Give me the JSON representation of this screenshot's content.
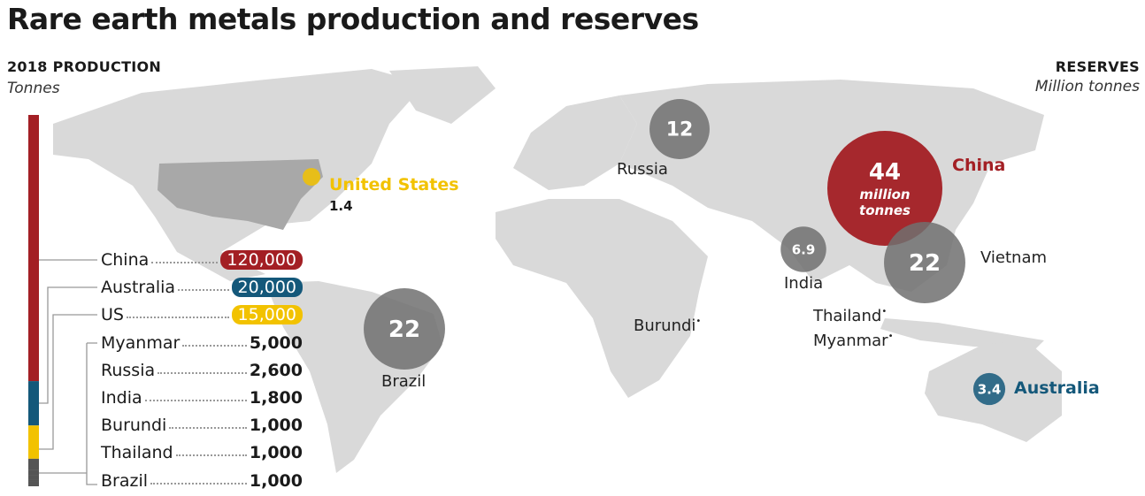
{
  "title": "Rare earth metals production and reserves",
  "production_header": {
    "title": "2018 Production",
    "unit": "Tonnes"
  },
  "reserves_header": {
    "title": "Reserves",
    "unit": "Million tonnes"
  },
  "colors": {
    "china": "#a31f24",
    "australia": "#14587a",
    "us": "#f2c200",
    "other": "#555555",
    "bubble_gray": "#707070",
    "land": "#d6d6d6",
    "land_dark": "#a8a8a8"
  },
  "chart_data": [
    {
      "type": "bar",
      "stacked": true,
      "title": "2018 Production",
      "ylabel": "Tonnes",
      "categories": [
        "China",
        "Australia",
        "US",
        "Myanmar",
        "Russia",
        "India",
        "Burundi",
        "Thailand",
        "Brazil"
      ],
      "values": [
        120000,
        20000,
        15000,
        5000,
        2600,
        1800,
        1000,
        1000,
        1000
      ],
      "value_labels": [
        "120,000",
        "20,000",
        "15,000",
        "5,000",
        "2,600",
        "1,800",
        "1,000",
        "1,000",
        "1,000"
      ]
    },
    {
      "type": "scatter",
      "title": "Reserves",
      "ylabel": "Million tonnes",
      "points": [
        {
          "country": "China",
          "value": 44,
          "label": "44",
          "note": [
            "million",
            "tonnes"
          ],
          "color": "#a31f24"
        },
        {
          "country": "Vietnam",
          "value": 22,
          "label": "22",
          "color": "#707070"
        },
        {
          "country": "Brazil",
          "value": 22,
          "label": "22",
          "color": "#707070"
        },
        {
          "country": "Russia",
          "value": 12,
          "label": "12",
          "color": "#707070"
        },
        {
          "country": "India",
          "value": 6.9,
          "label": "6.9",
          "color": "#707070"
        },
        {
          "country": "Australia",
          "value": 3.4,
          "label": "3.4",
          "color": "#14587a"
        },
        {
          "country": "United States",
          "value": 1.4,
          "label": "1.4",
          "color": "#f2c200"
        },
        {
          "country": "Thailand",
          "label": "•"
        },
        {
          "country": "Myanmar",
          "label": "•"
        },
        {
          "country": "Burundi",
          "label": "•"
        }
      ]
    }
  ]
}
